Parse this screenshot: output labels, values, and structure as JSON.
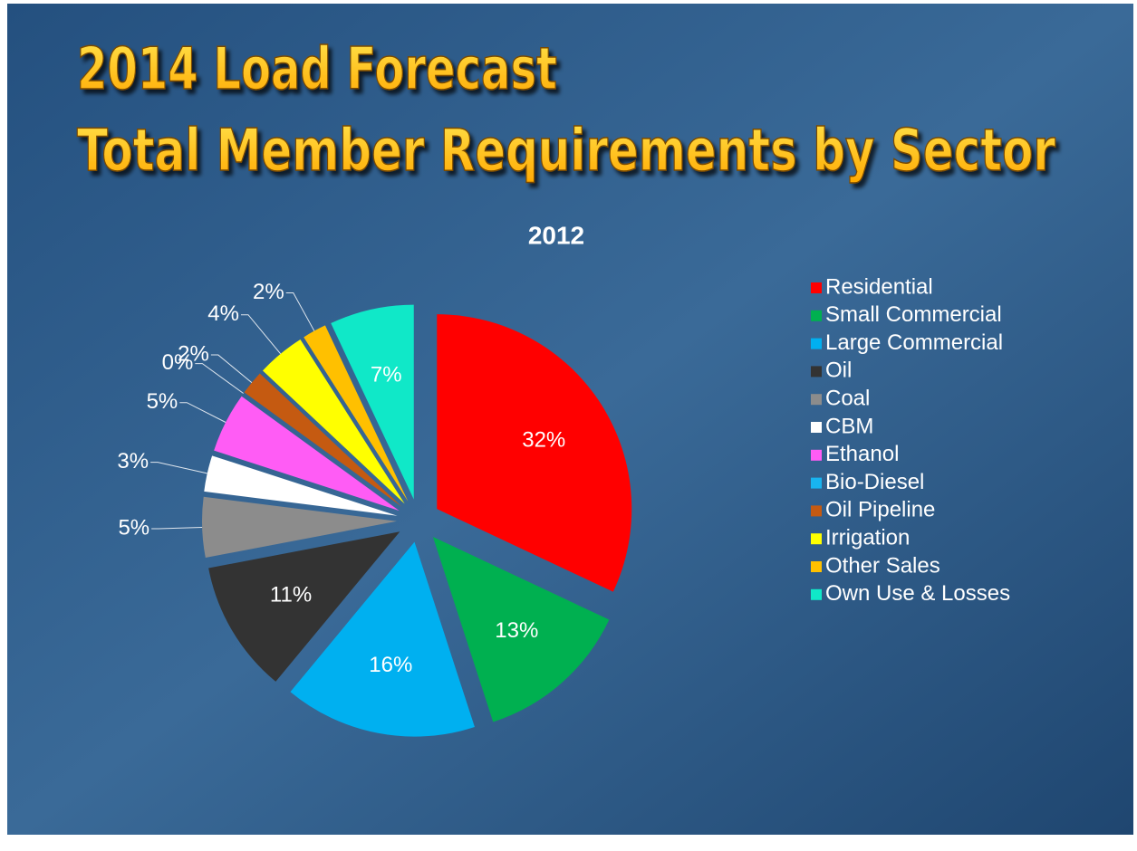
{
  "chart_data": {
    "type": "pie",
    "title": [
      "2014 Load Forecast",
      "Total Member Requirements by Sector"
    ],
    "subtitle": "2012",
    "categories": [
      "Residential",
      "Small Commercial",
      "Large Commercial",
      "Oil",
      "Coal",
      "CBM",
      "Ethanol",
      "Bio-Diesel",
      "Oil Pipeline",
      "Irrigation",
      "Other Sales",
      "Own Use & Losses"
    ],
    "values": [
      32,
      13,
      16,
      11,
      5,
      3,
      5,
      0,
      2,
      4,
      2,
      7
    ],
    "value_labels": [
      "32%",
      "13%",
      "16%",
      "11%",
      "5%",
      "3%",
      "5%",
      "0%",
      "2%",
      "4%",
      "2%",
      "7%"
    ],
    "colors": [
      "#ff0000",
      "#00b050",
      "#00b0f0",
      "#333333",
      "#8c8c8c",
      "#ffffff",
      "#ff5cf5",
      "#18b4f0",
      "#c55a11",
      "#ffff00",
      "#ffc000",
      "#10e8c8"
    ],
    "legend": "right"
  }
}
